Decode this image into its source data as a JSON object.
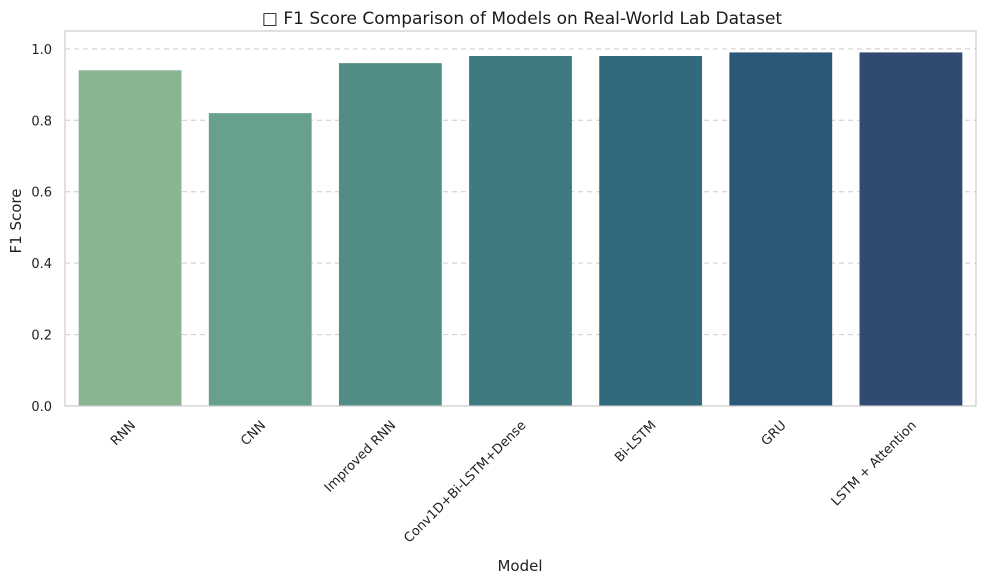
{
  "chart_data": {
    "type": "bar",
    "title": "□ F1 Score Comparison of Models on Real-World Lab Dataset",
    "xlabel": "Model",
    "ylabel": "F1 Score",
    "categories": [
      "RNN",
      "CNN",
      "Improved RNN",
      "Conv1D+Bi-LSTM+Dense",
      "Bi-LSTM",
      "GRU",
      "LSTM + Attention"
    ],
    "values": [
      0.94,
      0.82,
      0.96,
      0.98,
      0.98,
      0.99,
      0.99
    ],
    "colors": [
      "#89b593",
      "#67a08d",
      "#518c87",
      "#3f7a80",
      "#316a7d",
      "#2b5878",
      "#314a71"
    ],
    "ylim": [
      0,
      1.05
    ],
    "yticks": [
      0.0,
      0.2,
      0.4,
      0.6,
      0.8,
      1.0
    ],
    "ytick_labels": [
      "0.0",
      "0.2",
      "0.4",
      "0.6",
      "0.8",
      "1.0"
    ],
    "grid": "y-dashed",
    "legend": "none"
  }
}
